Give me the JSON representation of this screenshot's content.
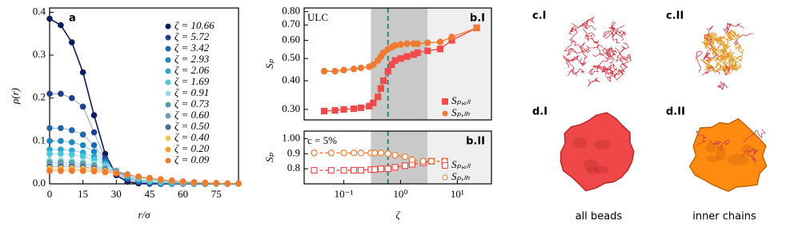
{
  "chart_data": [
    {
      "type": "scatter",
      "panel_label": "a",
      "xlabel": "r/σ",
      "ylabel": "ρ(r)",
      "x": [
        0,
        5,
        10,
        15,
        20,
        25,
        30,
        35,
        40,
        45,
        50,
        55,
        60,
        65,
        70,
        75,
        80,
        85
      ],
      "xlim": [
        0,
        85
      ],
      "xticks": [
        0,
        15,
        30,
        45,
        60,
        75
      ],
      "ylim": [
        0,
        0.41
      ],
      "yticks": [
        {
          "value": 0,
          "label": "0.0"
        },
        0.1,
        0.2,
        0.3,
        0.4
      ],
      "legend": "upper right",
      "series": [
        {
          "name": "ζ = 10.66",
          "color": "#0d1a5c",
          "values": [
            0.385,
            0.37,
            0.33,
            0.26,
            0.16,
            0.07,
            0.02,
            0.005,
            0.001,
            0,
            0,
            0,
            0,
            0,
            0,
            0,
            0,
            0
          ]
        },
        {
          "name": "ζ = 5.72",
          "color": "#1d3f8f",
          "values": [
            0.21,
            0.21,
            0.2,
            0.18,
            0.12,
            0.06,
            0.025,
            0.01,
            0.004,
            0.001,
            0,
            0,
            0,
            0,
            0,
            0,
            0,
            0
          ]
        },
        {
          "name": "ζ = 3.42",
          "color": "#1f67ad",
          "values": [
            0.13,
            0.13,
            0.125,
            0.115,
            0.09,
            0.055,
            0.03,
            0.013,
            0.006,
            0.002,
            0.001,
            0,
            0,
            0,
            0,
            0,
            0,
            0
          ]
        },
        {
          "name": "ζ = 2.93",
          "color": "#1e88c2",
          "values": [
            0.1,
            0.1,
            0.097,
            0.09,
            0.075,
            0.05,
            0.03,
            0.016,
            0.008,
            0.004,
            0.002,
            0.001,
            0,
            0,
            0,
            0,
            0,
            0
          ]
        },
        {
          "name": "ζ = 2.06",
          "color": "#2aa6d2",
          "values": [
            0.08,
            0.08,
            0.078,
            0.073,
            0.063,
            0.047,
            0.031,
            0.018,
            0.01,
            0.005,
            0.003,
            0.001,
            0.001,
            0,
            0,
            0,
            0,
            0
          ]
        },
        {
          "name": "ζ = 1.69",
          "color": "#4cc6dc",
          "values": [
            0.07,
            0.07,
            0.068,
            0.064,
            0.056,
            0.044,
            0.031,
            0.02,
            0.012,
            0.007,
            0.004,
            0.002,
            0.001,
            0.001,
            0,
            0,
            0,
            0
          ]
        },
        {
          "name": "ζ = 0.91",
          "color": "#92dbe6",
          "values": [
            0.055,
            0.055,
            0.054,
            0.052,
            0.047,
            0.04,
            0.031,
            0.022,
            0.015,
            0.01,
            0.006,
            0.004,
            0.002,
            0.001,
            0.001,
            0,
            0,
            0
          ]
        },
        {
          "name": "ζ = 0.73",
          "color": "#4fa3a0",
          "values": [
            0.05,
            0.05,
            0.049,
            0.047,
            0.043,
            0.037,
            0.03,
            0.022,
            0.016,
            0.011,
            0.007,
            0.004,
            0.003,
            0.002,
            0.001,
            0.001,
            0,
            0
          ]
        },
        {
          "name": "ζ = 0.60",
          "color": "#6f9dbd",
          "values": [
            0.045,
            0.045,
            0.044,
            0.043,
            0.04,
            0.035,
            0.029,
            0.022,
            0.016,
            0.011,
            0.008,
            0.005,
            0.003,
            0.002,
            0.001,
            0.001,
            0,
            0
          ]
        },
        {
          "name": "ζ = 0.50",
          "color": "#4a6898",
          "values": [
            0.04,
            0.04,
            0.04,
            0.039,
            0.036,
            0.032,
            0.027,
            0.022,
            0.016,
            0.012,
            0.008,
            0.005,
            0.003,
            0.002,
            0.001,
            0.001,
            0.001,
            0
          ]
        },
        {
          "name": "ζ = 0.40",
          "color": "#f0c64c",
          "values": [
            0.036,
            0.036,
            0.036,
            0.035,
            0.033,
            0.03,
            0.026,
            0.021,
            0.016,
            0.012,
            0.009,
            0.006,
            0.004,
            0.003,
            0.002,
            0.001,
            0.001,
            0
          ]
        },
        {
          "name": "ζ = 0.20",
          "color": "#f2a033",
          "values": [
            0.033,
            0.033,
            0.033,
            0.032,
            0.031,
            0.028,
            0.025,
            0.021,
            0.017,
            0.013,
            0.01,
            0.007,
            0.005,
            0.003,
            0.002,
            0.001,
            0.001,
            0.001
          ]
        },
        {
          "name": "ζ = 0.09",
          "color": "#f07a30",
          "values": [
            0.03,
            0.03,
            0.03,
            0.03,
            0.029,
            0.027,
            0.024,
            0.021,
            0.017,
            0.014,
            0.011,
            0.008,
            0.006,
            0.004,
            0.003,
            0.002,
            0.001,
            0.001
          ]
        }
      ]
    },
    {
      "type": "line",
      "panel_label": "b.I",
      "annotation": "ULC",
      "ylabel": "Sₚ",
      "xscale": "log",
      "yscale": "log",
      "xlim": [
        0.02,
        40
      ],
      "ylim": [
        0.27,
        0.83
      ],
      "yticks": [
        {
          "value": 0.3,
          "label": "0.30"
        },
        {
          "value": 0.4,
          "label": "0.40"
        },
        {
          "value": 0.5,
          "label": "0.50"
        },
        {
          "value": 0.6,
          "label": "0.60"
        },
        {
          "value": 0.7,
          "label": "0.70"
        },
        {
          "value": 0.8,
          "label": "0.80"
        }
      ],
      "shaded": [
        [
          0.3,
          3
        ],
        [
          3,
          40
        ]
      ],
      "shade_colors": [
        "#c9c9c9",
        "#efefef"
      ],
      "vline": 0.6,
      "vline_color": "#2a8a7a",
      "legend": "lower right",
      "x": [
        0.045,
        0.07,
        0.1,
        0.15,
        0.2,
        0.28,
        0.33,
        0.4,
        0.45,
        0.5,
        0.6,
        0.7,
        0.8,
        1,
        1.3,
        1.7,
        2,
        3,
        5,
        8,
        22
      ],
      "series": [
        {
          "name": "Sₚ,ₐₗₗ",
          "color": "#f24a4a",
          "marker": "square",
          "filled": true,
          "linestyle": "solid",
          "values": [
            0.295,
            0.297,
            0.3,
            0.302,
            0.305,
            0.31,
            0.32,
            0.34,
            0.37,
            0.4,
            0.44,
            0.47,
            0.49,
            0.5,
            0.51,
            0.52,
            0.53,
            0.54,
            0.55,
            0.6,
            0.68
          ]
        },
        {
          "name": "Sₚ,ₗₕ",
          "color": "#f07a30",
          "marker": "circle",
          "filled": true,
          "linestyle": "solid",
          "values": [
            0.44,
            0.44,
            0.445,
            0.45,
            0.455,
            0.46,
            0.47,
            0.49,
            0.51,
            0.53,
            0.55,
            0.56,
            0.57,
            0.575,
            0.58,
            0.58,
            0.58,
            0.585,
            0.59,
            0.62,
            0.68
          ]
        }
      ]
    },
    {
      "type": "line",
      "panel_label": "b.II",
      "annotation": "c = 5%",
      "ylabel": "Sₚ",
      "xlabel": "ζ",
      "xscale": "log",
      "yscale": "linear",
      "xlim": [
        0.02,
        40
      ],
      "xticks": [
        {
          "value": 0.1,
          "label": "10⁻¹"
        },
        {
          "value": 1,
          "label": "10⁰"
        },
        {
          "value": 10,
          "label": "10¹"
        }
      ],
      "ylim": [
        0.7,
        1.05
      ],
      "yticks": [
        0.8,
        0.9,
        {
          "value": 1,
          "label": "1.00"
        }
      ],
      "shaded": [
        [
          0.3,
          3
        ],
        [
          3,
          40
        ]
      ],
      "shade_colors": [
        "#c9c9c9",
        "#efefef"
      ],
      "vline": 0.6,
      "vline_color": "#2a8a7a",
      "legend": "lower right",
      "x": [
        0.03,
        0.06,
        0.1,
        0.15,
        0.2,
        0.3,
        0.35,
        0.45,
        0.6,
        0.8,
        1.2,
        1.6,
        2.5,
        3.5,
        6
      ],
      "series": [
        {
          "name": "Sₚ,ₐₗₗ",
          "color": "#f24a4a",
          "marker": "square",
          "filled": false,
          "linestyle": "dashed",
          "values": [
            0.79,
            0.79,
            0.79,
            0.79,
            0.79,
            0.795,
            0.795,
            0.8,
            0.8,
            0.81,
            0.82,
            0.83,
            0.84,
            0.85,
            0.85
          ]
        },
        {
          "name": "Sₚ,ₗₕ",
          "color": "#f07a30",
          "marker": "circle",
          "filled": false,
          "linestyle": "dashed",
          "values": [
            0.905,
            0.905,
            0.905,
            0.905,
            0.905,
            0.905,
            0.905,
            0.905,
            0.9,
            0.89,
            0.88,
            0.86,
            0.85,
            0.85,
            0.85
          ]
        }
      ]
    }
  ],
  "renders": {
    "labels": [
      "c.I",
      "c.II",
      "d.I",
      "d.II"
    ],
    "captions": [
      "all beads",
      "inner chains"
    ]
  }
}
